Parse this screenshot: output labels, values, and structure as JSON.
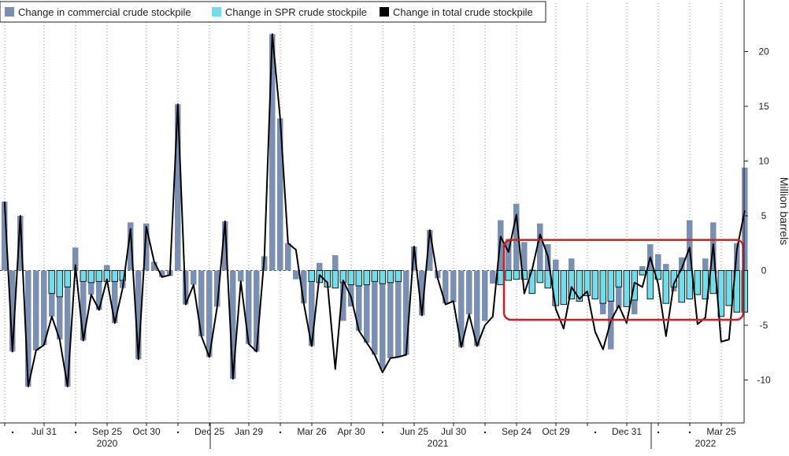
{
  "chart_data": {
    "type": "bar",
    "title": "",
    "xlabel": "",
    "ylabel": "Million barrels",
    "ylim": [
      -13.5,
      23.5
    ],
    "yticks": [
      -10,
      -5,
      0,
      5,
      10,
      15,
      20
    ],
    "grid": "vertical-dotted",
    "legend_position": "top-left",
    "colors": {
      "commercial": "#7b8fb0",
      "spr": "#72dcea",
      "total": "#000000",
      "highlight_box": "#d01d24"
    },
    "legend": [
      {
        "label": "Change in commercial crude stockpile",
        "color": "#7b8fb0"
      },
      {
        "label": "Change in SPR crude stockpile",
        "color": "#72dcea"
      },
      {
        "label": "Change in total crude stockpile",
        "color": "#000000"
      }
    ],
    "x_tick_labels": [
      "Jul 31",
      "Sep 25",
      "Oct 30",
      "Dec 25",
      "Jan 29",
      "Mar 26",
      "Apr 30",
      "Jun 25",
      "Jul 30",
      "Sep 24",
      "Oct 29",
      "Dec 31",
      "Mar 25"
    ],
    "x_tick_label_weeks": [
      5,
      13,
      18,
      26,
      31,
      39,
      44,
      52,
      57,
      65,
      70,
      79,
      91
    ],
    "year_labels": [
      {
        "label": "2020",
        "week": 13
      },
      {
        "label": "2021",
        "week": 55
      },
      {
        "label": "2022",
        "week": 89
      }
    ],
    "week_count": 94,
    "highlight_weeks": [
      64,
      94
    ],
    "series": [
      {
        "name": "Change in commercial crude stockpile",
        "type": "bar",
        "values": [
          6.3,
          -7.4,
          5.0,
          -10.6,
          -7.3,
          -6.8,
          -4.2,
          -6.3,
          -10.6,
          2.1,
          -6.4,
          -2.2,
          -3.6,
          0.5,
          -4.8,
          -1.6,
          4.4,
          -8.1,
          4.3,
          0.8,
          -0.6,
          -0.5,
          15.2,
          -3.1,
          -1.3,
          -6.0,
          -7.9,
          -3.3,
          4.5,
          -9.9,
          -1.0,
          -6.7,
          -7.4,
          1.3,
          21.6,
          13.9,
          2.5,
          -0.8,
          -3.0,
          -6.9,
          0.7,
          -1.3,
          1.4,
          -4.6,
          -3.3,
          -5.5,
          -6.6,
          -7.7,
          -9.0,
          -8.0,
          -7.9,
          -7.7,
          2.2,
          -4.1,
          3.7,
          -0.7,
          -3.0,
          -2.9,
          -7.0,
          -4.0,
          -6.9,
          -4.6,
          -1.2,
          4.6,
          2.9,
          6.1,
          2.6,
          0.1,
          4.3,
          2.4,
          1.0,
          -2.2,
          1.1,
          -0.7,
          -1.9,
          -0.5,
          -4.0,
          -7.2,
          -3.4,
          -1.8,
          -4.0,
          0.4,
          2.4,
          1.5,
          0.6,
          -1.9,
          1.2,
          4.6,
          -2.2,
          1.1,
          4.4,
          -2.9,
          -1.4,
          2.5,
          9.4
        ]
      },
      {
        "name": "Change in SPR crude stockpile",
        "type": "bar",
        "values": [
          0,
          0,
          0,
          0,
          0,
          0,
          -2.1,
          -2.4,
          -1.5,
          0,
          -1.0,
          -1.1,
          -1.0,
          -1.0,
          -1.0,
          -0.9,
          0,
          0,
          0,
          0,
          0,
          0,
          0,
          0,
          0,
          0,
          0,
          0,
          0,
          0,
          0,
          0,
          0,
          0,
          0,
          0,
          0,
          0,
          0,
          -1.0,
          -1.1,
          -1.5,
          -1.6,
          -1.1,
          -1.3,
          -1.4,
          -1.3,
          -1.0,
          -1.2,
          -1.1,
          -1.0,
          0,
          0,
          0,
          0,
          0,
          0,
          0,
          0,
          0,
          0,
          0,
          0,
          -1.3,
          -0.9,
          -0.8,
          -0.8,
          -2.1,
          -1.1,
          -1.6,
          -3.2,
          -3.1,
          -2.6,
          -2.8,
          -2.3,
          -2.6,
          -3.0,
          -2.8,
          -1.5,
          -3.3,
          -2.7,
          -0.4,
          -2.6,
          -0.8,
          -3.0,
          -1.5,
          -2.9,
          -2.6,
          -2.2,
          -2.6,
          -2.1,
          -4.2,
          -3.2,
          -3.8,
          -3.8
        ]
      },
      {
        "name": "Change in total crude stockpile",
        "type": "line",
        "values": [
          6.3,
          -7.4,
          5.0,
          -10.6,
          -7.3,
          -6.8,
          -4.2,
          -6.3,
          -10.6,
          0.5,
          -6.4,
          -2.2,
          -3.6,
          -0.8,
          -4.8,
          -1.6,
          3.8,
          -8.1,
          4.0,
          0.8,
          -0.6,
          -0.4,
          15.2,
          -3.1,
          -1.3,
          -6.0,
          -7.9,
          -3.3,
          4.5,
          -9.9,
          -1.0,
          -6.7,
          -7.4,
          1.3,
          21.6,
          13.9,
          2.5,
          1.9,
          -3.0,
          -6.9,
          -0.4,
          -1.1,
          -9.0,
          -0.9,
          -2.4,
          -5.5,
          -6.6,
          -7.7,
          -9.3,
          -8.0,
          -7.9,
          -7.7,
          2.2,
          -4.1,
          3.7,
          -0.7,
          -3.1,
          -2.8,
          -7.0,
          -4.0,
          -6.9,
          -5.0,
          -4.2,
          3.1,
          1.7,
          5.1,
          -2.1,
          0.1,
          3.3,
          1.3,
          -3.5,
          -5.3,
          -1.5,
          -2.6,
          -1.9,
          -5.6,
          -7.2,
          -4.6,
          -3.2,
          -4.8,
          -1.1,
          -1.5,
          1.2,
          -1.2,
          -6.0,
          -1.2,
          0.2,
          2.1,
          -4.9,
          -4.3,
          2.4,
          -6.5,
          -6.3,
          1.9,
          5.5
        ]
      }
    ]
  }
}
